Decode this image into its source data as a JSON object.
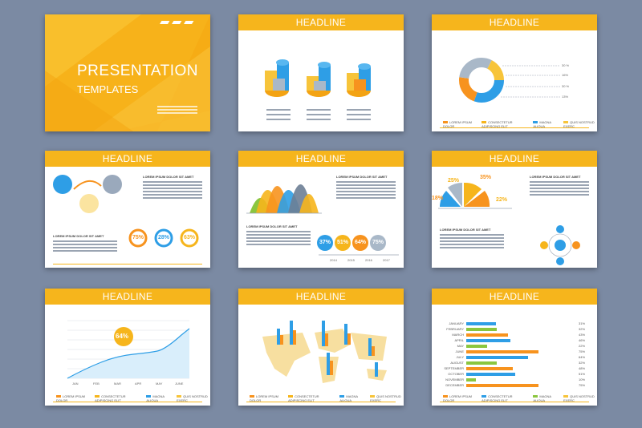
{
  "cover": {
    "title": "PRESENTATION",
    "subtitle": "TEMPLATES"
  },
  "headline": "HEADLINE",
  "colors": {
    "yellow": "#f6b51c",
    "orange": "#f7931e",
    "blue": "#2e9ee6",
    "green": "#8bc63f",
    "gray": "#6d7e95",
    "bg": "#7b8aa3"
  },
  "legend_4": [
    "LOREM IPSUM DOLOR",
    "CONSECTETUR ADIPISCING ELIT",
    "MAGNA ALIQUA",
    "QUIS NOSTRUD EXERC"
  ],
  "text_title": "LOREM IPSUM DOLOR SIT AMET",
  "donut_pcts": [
    "30 %",
    "16%",
    "30 %",
    "13%"
  ],
  "circles_pcts": [
    "75%",
    "28%",
    "63%"
  ],
  "bell_pcts": [
    "37%",
    "51%",
    "64%",
    "75%"
  ],
  "bell_years": [
    "2014",
    "2015",
    "2016",
    "2017"
  ],
  "pie_pcts": [
    "25%",
    "35%",
    "18%",
    "22%"
  ],
  "line_badge": "64%",
  "line_months": [
    "JAN",
    "FEB",
    "MAR",
    "APR",
    "MAY",
    "JUNE"
  ],
  "line_ticks": [
    "100",
    "90",
    "80",
    "70",
    "60",
    "50",
    "40",
    "30",
    "20",
    "10",
    "0"
  ],
  "hbar_months": [
    "JANUARY",
    "FEBRUARY",
    "MARCH",
    "APRIL",
    "MAY",
    "JUNE",
    "JULY",
    "AUGUST",
    "SEPTEMBER",
    "OCTOBER",
    "NOVEMBER",
    "DECEMBER"
  ],
  "hbar_pcts": [
    "31%",
    "32%",
    "43%",
    "46%",
    "22%",
    "75%",
    "64%",
    "32%",
    "48%",
    "51%",
    "10%",
    "75%"
  ]
}
